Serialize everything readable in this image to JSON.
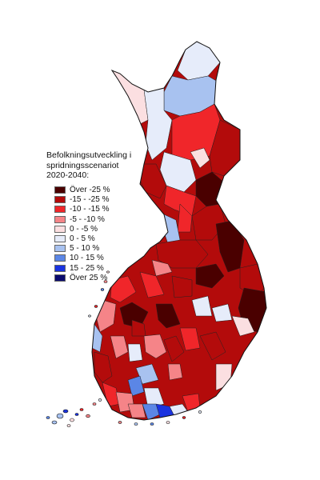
{
  "legend": {
    "title_lines": [
      "Befolkningsutveckling i",
      "spridningsscenariot",
      "2020-2040:"
    ],
    "items": [
      {
        "label": "Över -25 %",
        "color": "#4a0000"
      },
      {
        "label": "-15 - -25 %",
        "color": "#b30b0b"
      },
      {
        "label": "-10 - -15 %",
        "color": "#f0262a"
      },
      {
        "label": "-5 - -10 %",
        "color": "#f58488"
      },
      {
        "label": "0 - -5 %",
        "color": "#fbdfe1"
      },
      {
        "label": "0 - 5 %",
        "color": "#e6ecfa"
      },
      {
        "label": "5 - 10 %",
        "color": "#a8c2f0"
      },
      {
        "label": "10 - 15 %",
        "color": "#5b86e6"
      },
      {
        "label": "15 - 25 %",
        "color": "#1a33e0"
      },
      {
        "label": "Över 25 %",
        "color": "#0a0a6e"
      }
    ]
  }
}
